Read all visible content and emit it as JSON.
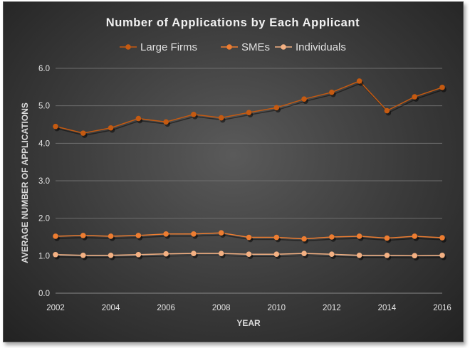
{
  "chart_data": {
    "type": "line",
    "title": "Number of Applications by Each Applicant",
    "xlabel": "YEAR",
    "ylabel": "AVERAGE NUMBER OF APPLICATIONS",
    "x": [
      2002,
      2003,
      2004,
      2005,
      2006,
      2007,
      2008,
      2009,
      2010,
      2011,
      2012,
      2013,
      2014,
      2015,
      2016
    ],
    "xticks": [
      "2002",
      "2004",
      "2006",
      "2008",
      "2010",
      "2012",
      "2014",
      "2016"
    ],
    "yticks": [
      "0.0",
      "1.0",
      "2.0",
      "3.0",
      "4.0",
      "5.0",
      "6.0"
    ],
    "ylim": [
      0,
      6
    ],
    "xlim": [
      2002,
      2016
    ],
    "grid": "horizontal",
    "legend_position": "top",
    "series": [
      {
        "name": "Large Firms",
        "color": "#c55a11",
        "values": [
          4.45,
          4.27,
          4.41,
          4.66,
          4.57,
          4.77,
          4.68,
          4.82,
          4.95,
          5.18,
          5.36,
          5.66,
          4.87,
          5.24,
          5.49
        ]
      },
      {
        "name": "SMEs",
        "color": "#ed7d31",
        "values": [
          1.52,
          1.54,
          1.52,
          1.54,
          1.58,
          1.58,
          1.61,
          1.49,
          1.49,
          1.45,
          1.5,
          1.52,
          1.47,
          1.52,
          1.48
        ]
      },
      {
        "name": "Individuals",
        "color": "#f4b183",
        "values": [
          1.03,
          1.01,
          1.01,
          1.03,
          1.05,
          1.06,
          1.06,
          1.04,
          1.04,
          1.06,
          1.04,
          1.01,
          1.01,
          1.0,
          1.01
        ]
      }
    ]
  }
}
